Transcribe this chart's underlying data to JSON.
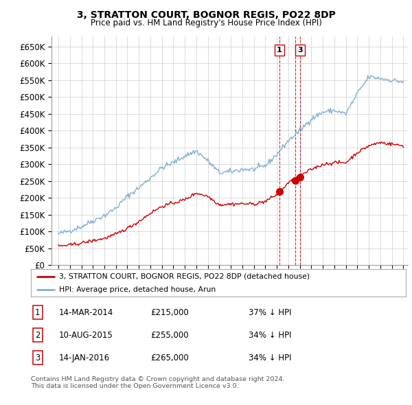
{
  "title": "3, STRATTON COURT, BOGNOR REGIS, PO22 8DP",
  "subtitle": "Price paid vs. HM Land Registry's House Price Index (HPI)",
  "legend_line1": "3, STRATTON COURT, BOGNOR REGIS, PO22 8DP (detached house)",
  "legend_line2": "HPI: Average price, detached house, Arun",
  "footnote": "Contains HM Land Registry data © Crown copyright and database right 2024.\nThis data is licensed under the Open Government Licence v3.0.",
  "transactions": [
    {
      "num": 1,
      "date": "14-MAR-2014",
      "price": 215000,
      "pct": "37%",
      "dir": "↓",
      "year": 2014.21
    },
    {
      "num": 2,
      "date": "10-AUG-2015",
      "price": 255000,
      "pct": "34%",
      "dir": "↓",
      "year": 2015.61
    },
    {
      "num": 3,
      "date": "14-JAN-2016",
      "price": 265000,
      "pct": "34%",
      "dir": "↓",
      "year": 2016.04
    }
  ],
  "show_label_indices": [
    0,
    2
  ],
  "property_color": "#cc0000",
  "hpi_color": "#7fafd4",
  "dashed_line_color": "#cc0000",
  "background_color": "#ffffff",
  "grid_color": "#cccccc",
  "ylim_max": 680000,
  "ytick_step": 50000,
  "xlabel_start": 1995,
  "xlabel_end": 2025,
  "hpi_anchors_x": [
    1995,
    1996,
    1997,
    1998,
    1999,
    2000,
    2001,
    2002,
    2003,
    2004,
    2005,
    2006,
    2007,
    2008,
    2009,
    2010,
    2011,
    2012,
    2013,
    2014,
    2015,
    2016,
    2017,
    2018,
    2019,
    2020,
    2021,
    2022,
    2023,
    2024,
    2025
  ],
  "hpi_anchors_y": [
    93000,
    103000,
    115000,
    132000,
    148000,
    170000,
    205000,
    230000,
    260000,
    290000,
    305000,
    325000,
    340000,
    310000,
    275000,
    278000,
    285000,
    285000,
    295000,
    330000,
    370000,
    400000,
    435000,
    455000,
    460000,
    450000,
    510000,
    560000,
    555000,
    550000,
    545000
  ],
  "prop_anchors_x": [
    1995,
    1996,
    1997,
    1998,
    1999,
    2000,
    2001,
    2002,
    2003,
    2004,
    2005,
    2006,
    2007,
    2008,
    2009,
    2010,
    2011,
    2012,
    2013,
    2014,
    2015,
    2016,
    2017,
    2018,
    2019,
    2020,
    2021,
    2022,
    2023,
    2024,
    2025
  ],
  "prop_anchors_y": [
    57000,
    60000,
    66000,
    73000,
    80000,
    92000,
    110000,
    130000,
    155000,
    175000,
    185000,
    195000,
    215000,
    205000,
    180000,
    182000,
    183000,
    182000,
    190000,
    210000,
    245000,
    265000,
    285000,
    300000,
    305000,
    305000,
    335000,
    355000,
    365000,
    360000,
    355000
  ]
}
